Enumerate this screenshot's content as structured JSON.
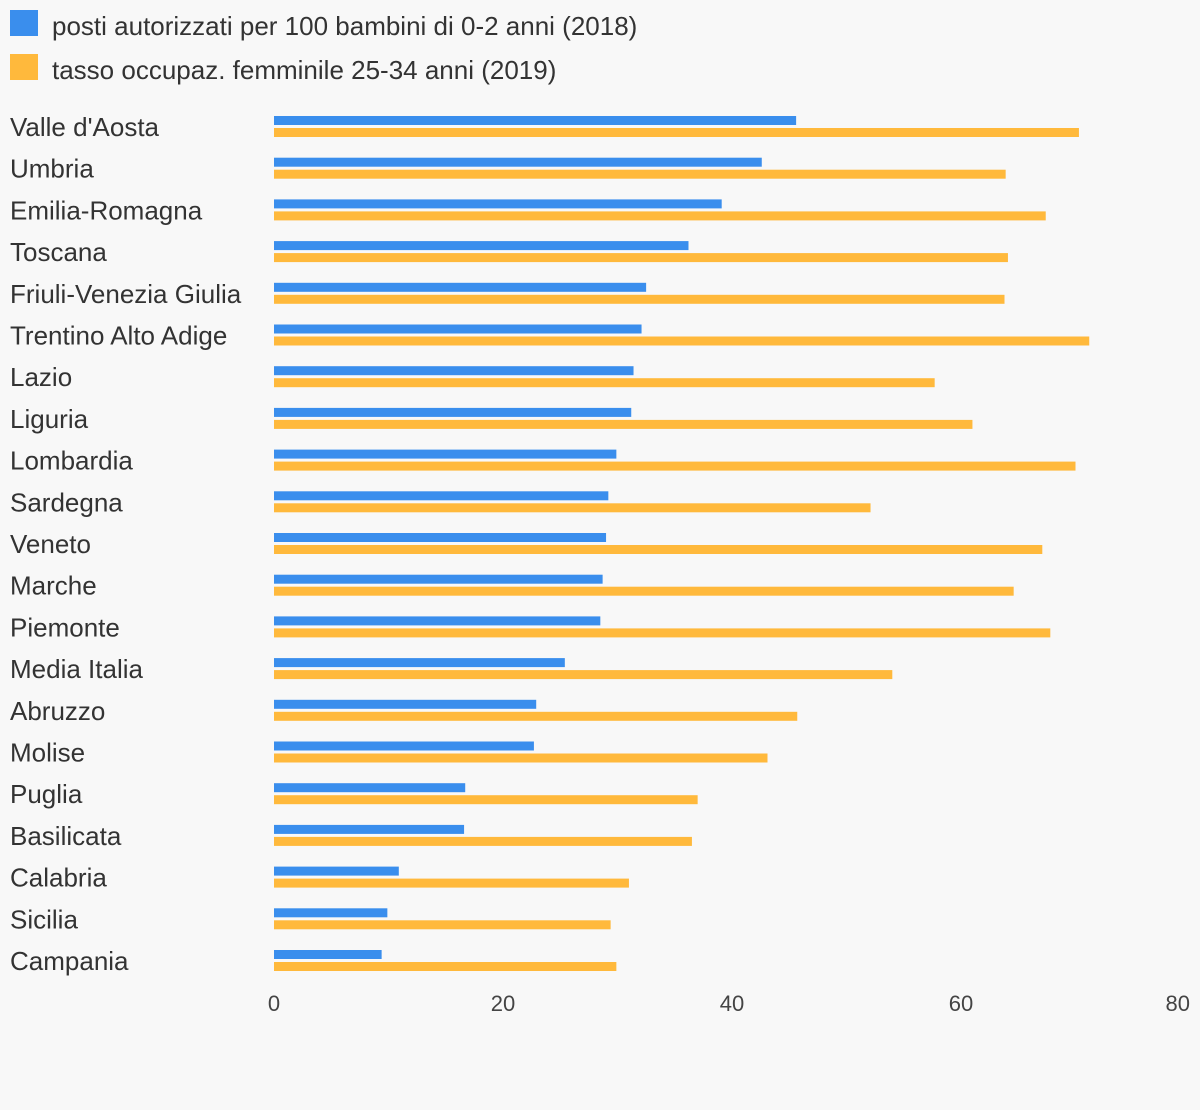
{
  "chart_data": {
    "type": "bar",
    "orientation": "horizontal",
    "categories": [
      "Valle d'Aosta",
      "Umbria",
      "Emilia-Romagna",
      "Toscana",
      "Friuli-Venezia Giulia",
      "Trentino Alto Adige",
      "Lazio",
      "Liguria",
      "Lombardia",
      "Sardegna",
      "Veneto",
      "Marche",
      "Piemonte",
      "Media Italia",
      "Abruzzo",
      "Molise",
      "Puglia",
      "Basilicata",
      "Calabria",
      "Sicilia",
      "Campania"
    ],
    "series": [
      {
        "name": "posti autorizzati per 100 bambini di 0-2 anni (2018)",
        "color": "#3a8eed",
        "values": [
          45.6,
          42.6,
          39.1,
          36.2,
          32.5,
          32.1,
          31.4,
          31.2,
          29.9,
          29.2,
          29.0,
          28.7,
          28.5,
          25.4,
          22.9,
          22.7,
          16.7,
          16.6,
          10.9,
          9.9,
          9.4
        ]
      },
      {
        "name": "tasso occupaz. femminile 25-34 anni (2019)",
        "color": "#ffb93c",
        "values": [
          70.3,
          63.9,
          67.4,
          64.1,
          63.8,
          71.2,
          57.7,
          61.0,
          70.0,
          52.1,
          67.1,
          64.6,
          67.8,
          54.0,
          45.7,
          43.1,
          37.0,
          36.5,
          31.0,
          29.4,
          29.9
        ]
      }
    ],
    "xlim": [
      0,
      80
    ],
    "xticks": [
      "0",
      "20",
      "40",
      "60",
      "80"
    ],
    "grid": false,
    "legend_position": "top-left"
  }
}
